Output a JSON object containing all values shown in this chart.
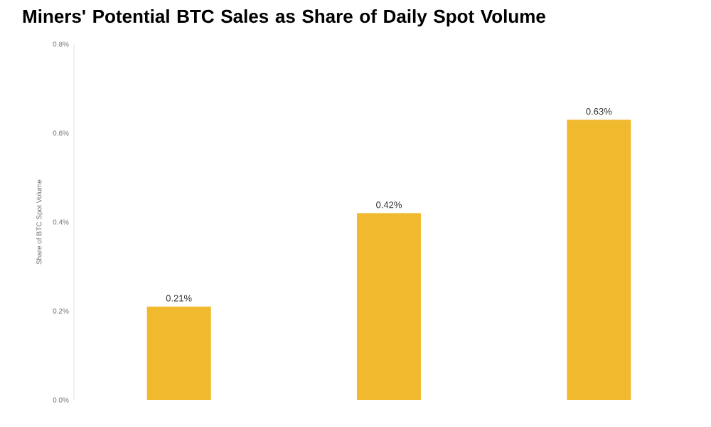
{
  "chart_data": {
    "type": "bar",
    "title": "Miners' Potential BTC Sales as Share of Daily Spot Volume",
    "ylabel": "Share of BTC Spot Volume",
    "categories": [
      null,
      null,
      null
    ],
    "values": [
      0.21,
      0.42,
      0.63
    ],
    "color": "#f0b92e",
    "value_labels": [
      "0.21%",
      "0.42%",
      "0.63%"
    ],
    "ylim": [
      0,
      0.8
    ],
    "yticks": [
      {
        "value": 0,
        "label": "0.0%"
      },
      {
        "value": 0.2,
        "label": "0.2%"
      },
      {
        "value": 0.4,
        "label": "0.4%"
      },
      {
        "value": 0.6,
        "label": "0.6%"
      },
      {
        "value": 0.8,
        "label": "0.8%"
      }
    ],
    "grid": false
  }
}
